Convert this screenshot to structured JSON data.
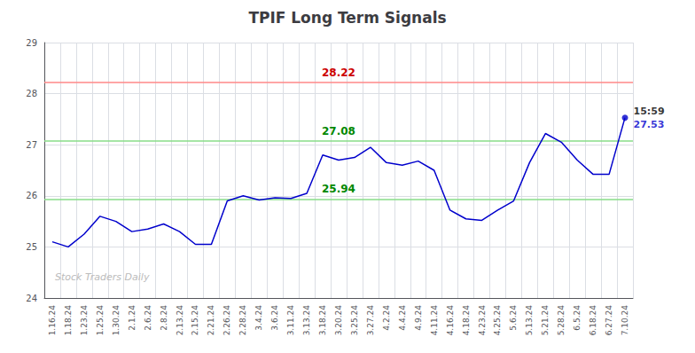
{
  "chart_data": {
    "type": "line",
    "title": "TPIF Long Term Signals",
    "categories": [
      "1.16.24",
      "1.18.24",
      "1.23.24",
      "1.25.24",
      "1.30.24",
      "2.1.24",
      "2.6.24",
      "2.8.24",
      "2.13.24",
      "2.15.24",
      "2.21.24",
      "2.26.24",
      "2.28.24",
      "3.4.24",
      "3.6.24",
      "3.11.24",
      "3.13.24",
      "3.18.24",
      "3.20.24",
      "3.25.24",
      "3.27.24",
      "4.2.24",
      "4.4.24",
      "4.9.24",
      "4.11.24",
      "4.16.24",
      "4.18.24",
      "4.23.24",
      "4.25.24",
      "5.6.24",
      "5.13.24",
      "5.21.24",
      "5.28.24",
      "6.5.24",
      "6.18.24",
      "6.27.24",
      "7.10.24"
    ],
    "values": [
      25.1,
      25.0,
      25.25,
      25.6,
      25.5,
      25.3,
      25.35,
      25.45,
      25.3,
      25.05,
      25.05,
      25.9,
      26.0,
      25.92,
      25.96,
      25.95,
      26.05,
      26.8,
      26.7,
      26.75,
      26.95,
      26.65,
      26.6,
      26.68,
      26.5,
      25.72,
      25.55,
      25.52,
      25.72,
      25.9,
      26.65,
      27.22,
      27.05,
      26.7,
      26.42,
      26.42,
      27.53
    ],
    "color": "#0000cc",
    "ylim": [
      24,
      29
    ],
    "yticks": [
      24,
      25,
      26,
      27,
      28,
      29
    ],
    "grid": true,
    "hlines": [
      {
        "value": 28.22,
        "label": "28.22",
        "color": "#ff8888",
        "label_color": "#cc0000"
      },
      {
        "value": 27.08,
        "label": "27.08",
        "color": "#88dd88",
        "label_color": "#008800"
      },
      {
        "value": 25.94,
        "label": "25.94",
        "color": "#88dd88",
        "label_color": "#008800"
      }
    ],
    "last_point_labels": [
      {
        "text": "15:59",
        "color": "#000000"
      },
      {
        "text": "27.53",
        "color": "#0000cc"
      }
    ],
    "watermark": "Stock Traders Daily"
  }
}
